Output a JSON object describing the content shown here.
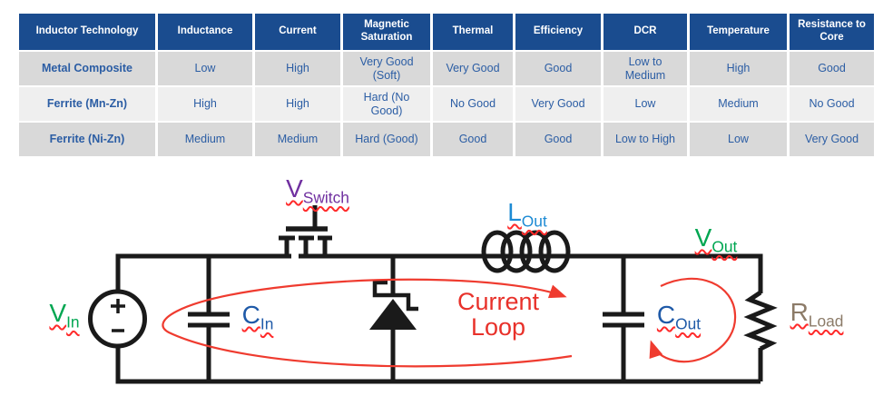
{
  "colors": {
    "header_bg": "#1a4c8f",
    "header_text": "#ffffff",
    "row_dark": "#d9d9d9",
    "row_light": "#efefef",
    "cell_text": "#2b5da4",
    "wire": "#1a1a1a",
    "loop_red": "#ef3b2f",
    "squiggle_red": "#ff2a2a"
  },
  "table": {
    "columns": [
      "Inductor Technology",
      "Inductance",
      "Current",
      "Magnetic Saturation",
      "Thermal",
      "Efficiency",
      "DCR",
      "Temperature",
      "Resistance to Core"
    ],
    "rows": [
      [
        "Metal Composite",
        "Low",
        "High",
        "Very Good (Soft)",
        "Very Good",
        "Good",
        "Low to Medium",
        "High",
        "Good"
      ],
      [
        "Ferrite (Mn-Zn)",
        "High",
        "High",
        "Hard (No Good)",
        "No Good",
        "Very Good",
        "Low",
        "Medium",
        "No Good"
      ],
      [
        "Ferrite (Ni-Zn)",
        "Medium",
        "Medium",
        "Hard (Good)",
        "Good",
        "Good",
        "Low to High",
        "Low",
        "Very Good"
      ]
    ]
  },
  "circuit": {
    "labels": [
      {
        "id": "v-in",
        "main": "V",
        "sub": "In",
        "color": "#00a651"
      },
      {
        "id": "c-in",
        "main": "C",
        "sub": "In",
        "color": "#1f5aa8"
      },
      {
        "id": "v-switch",
        "main": "V",
        "sub": "Switch",
        "color": "#7030a0"
      },
      {
        "id": "l-out",
        "main": "L",
        "sub": "Out",
        "color": "#1e8bd4"
      },
      {
        "id": "c-out",
        "main": "C",
        "sub": "Out",
        "color": "#1f5aa8"
      },
      {
        "id": "v-out",
        "main": "V",
        "sub": "Out",
        "color": "#00a651"
      },
      {
        "id": "r-load",
        "main": "R",
        "sub": "Load",
        "color": "#8c7b68"
      }
    ],
    "current_loop_label": {
      "line1": "Current",
      "line2": "Loop",
      "color": "#e8312a"
    },
    "source": {
      "plus": "+",
      "minus": "-"
    }
  }
}
